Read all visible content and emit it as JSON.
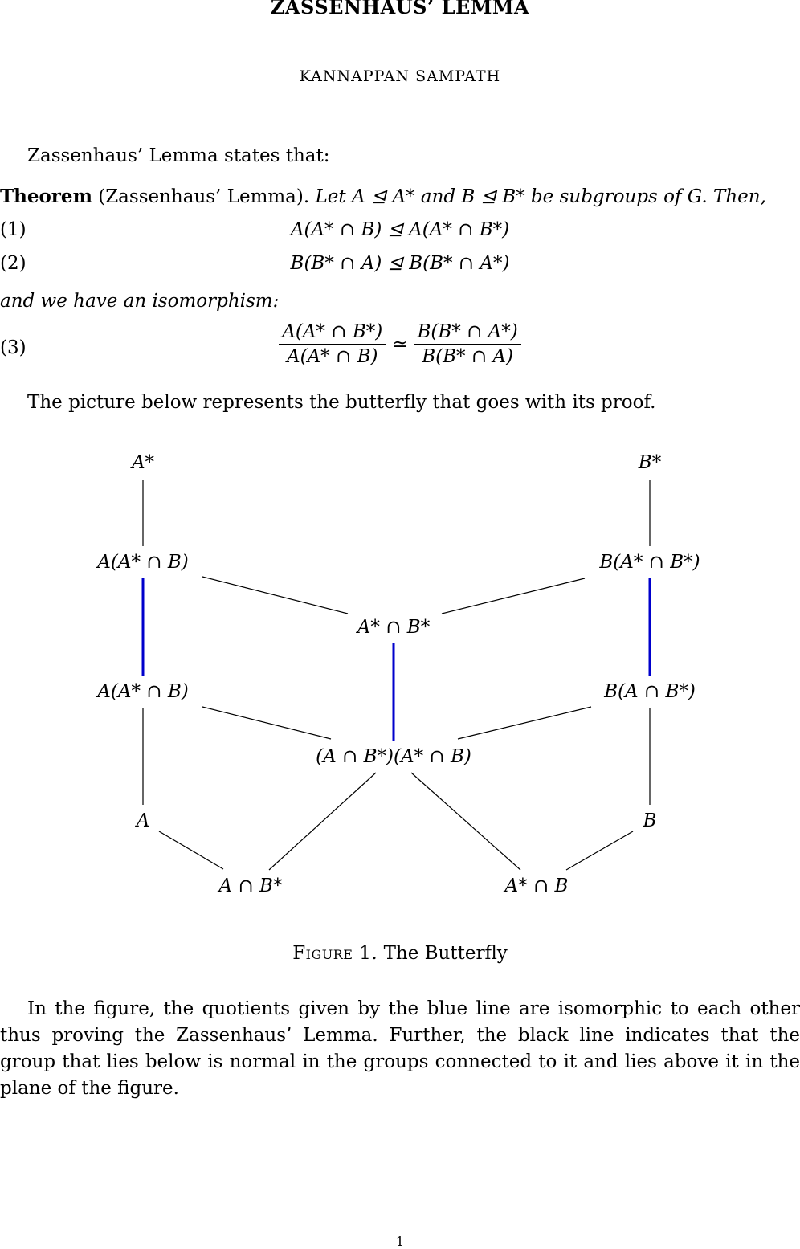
{
  "title": "ZASSENHAUS’ LEMMA",
  "author": "KANNAPPAN SAMPATH",
  "intro": "Zassenhaus’ Lemma states that:",
  "theorem": {
    "label": "Theorem",
    "name": "(Zassenhaus’ Lemma).",
    "statement": "Let A ⊴ A* and B ⊴ B* be subgroups of G. Then,"
  },
  "equations": [
    {
      "num": "(1)",
      "text": "A(A* ∩ B) ⊴ A(A* ∩ B*)"
    },
    {
      "num": "(2)",
      "text": "B(B* ∩ A) ⊴ B(B* ∩ A*)"
    }
  ],
  "iso_intro": "and we have an isomorphism:",
  "eq3": {
    "num": "(3)",
    "left_num": "A(A* ∩ B*)",
    "left_den": "A(A* ∩ B)",
    "relation": "≃",
    "right_num": "B(B* ∩ A*)",
    "right_den": "B(B* ∩ A)"
  },
  "picture_intro": "The picture below represents the butterfly that goes with its proof.",
  "diagram": {
    "nodes": {
      "Astar": "A*",
      "Bstar": "B*",
      "A_AstarB_top": "A(A* ∩ B)",
      "B_AstarBstar": "B(A* ∩ B*)",
      "AstarBstar": "A* ∩ B*",
      "A_AstarB_mid": "A(A* ∩ B)",
      "B_ABstar": "B(A ∩ B*)",
      "product": "(A ∩ B*)(A* ∩ B)",
      "A": "A",
      "B": "B",
      "ABstar": "A ∩ B*",
      "AstarB": "A* ∩ B"
    },
    "colors": {
      "normal_edge": "#000000",
      "iso_edge": "#0000cc"
    }
  },
  "caption": {
    "figure": "Figure 1.",
    "text": "The Butterfly"
  },
  "closing": "In the figure, the quotients given by the blue line are isomorphic to each other thus proving the Zassenhaus’ Lemma. Further, the black line indicates that the group that lies below is normal in the groups connected to it and lies above it in the plane of the figure.",
  "page_number": "1"
}
